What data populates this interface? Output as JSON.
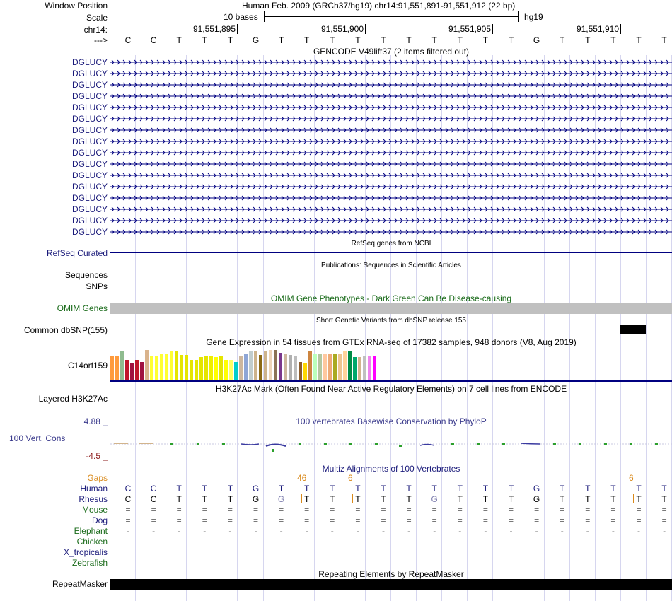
{
  "header": {
    "window_position_label": "Window Position",
    "scale_label": "Scale",
    "chrom_label": "chr14:",
    "strand_label": "--->",
    "assembly_text": "Human Feb. 2009 (GRCh37/hg19)   chr14:91,551,891-91,551,912 (22 bp)",
    "scale_text": "10 bases",
    "db_text": "hg19",
    "ticks": [
      "91,551,895",
      "91,551,900",
      "91,551,905",
      "91,551,910"
    ],
    "bases": [
      "C",
      "C",
      "T",
      "T",
      "T",
      "G",
      "T",
      "T",
      "T",
      "T",
      "T",
      "T",
      "T",
      "T",
      "T",
      "T",
      "G",
      "T",
      "T",
      "T",
      "T",
      "T"
    ]
  },
  "gencode": {
    "title": "GENCODE V49lift37 (2 items filtered out)",
    "gene_labels": [
      "DGLUCY",
      "DGLUCY",
      "DGLUCY",
      "DGLUCY",
      "DGLUCY",
      "DGLUCY",
      "DGLUCY",
      "DGLUCY",
      "DGLUCY",
      "DGLUCY",
      "DGLUCY",
      "DGLUCY",
      "DGLUCY",
      "DGLUCY",
      "DGLUCY",
      "DGLUCY"
    ]
  },
  "refseq": {
    "title": "RefSeq genes from NCBI",
    "label": "RefSeq Curated"
  },
  "publications": {
    "title": "Publications: Sequences in Scientific Articles",
    "label_sequences": "Sequences",
    "label_snps": "SNPs"
  },
  "omim": {
    "title": "OMIM Gene Phenotypes - Dark Green Can Be Disease-causing",
    "label": "OMIM Genes",
    "bar_color": "#c0c0c0"
  },
  "dbsnp": {
    "title": "Short Genetic Variants from dbSNP release 155",
    "label": "Common dbSNP(155)"
  },
  "gtex": {
    "title": "Gene Expression in 54 tissues from GTEx RNA-seq of 17382 samples, 948 donors (V8, Aug 2019)",
    "label": "C14orf159",
    "tissue_levels": [
      0.7,
      0.7,
      0.85,
      0.6,
      0.5,
      0.6,
      0.55,
      0.9,
      0.7,
      0.7,
      0.78,
      0.8,
      0.85,
      0.85,
      0.75,
      0.75,
      0.6,
      0.6,
      0.68,
      0.72,
      0.72,
      0.68,
      0.7,
      0.6,
      0.6,
      0.55,
      0.7,
      0.8,
      0.85,
      0.85,
      0.75,
      0.88,
      0.9,
      0.9,
      0.82,
      0.78,
      0.75,
      0.7,
      0.55,
      0.5,
      0.85,
      0.8,
      0.78,
      0.8,
      0.8,
      0.78,
      0.78,
      0.85,
      0.85,
      0.68,
      0.68,
      0.72,
      0.7,
      0.72
    ],
    "tissue_colors": [
      "#ff9a3c",
      "#ff9a3c",
      "#8fbc8f",
      "#c0172b",
      "#a01240",
      "#c0172b",
      "#a01240",
      "#d9b38c",
      "#ffff33",
      "#ffff33",
      "#ffff33",
      "#ffff33",
      "#ffff33",
      "#e5e500",
      "#e5e500",
      "#e5e500",
      "#e5e500",
      "#e5e500",
      "#e5e500",
      "#e5e500",
      "#eeee00",
      "#ffff00",
      "#e5e500",
      "#ffff00",
      "#ffff66",
      "#00cdcd",
      "#cdb79e",
      "#8ea6d6",
      "#c1cdcd",
      "#cdb38b",
      "#8b6914",
      "#cdb38b",
      "#eed5b7",
      "#8b7355",
      "#7a378b",
      "#cdb79e",
      "#b0b0b0",
      "#bdbdbd",
      "#8b5a2b",
      "#ffd700",
      "#cd853f",
      "#bbffbb",
      "#b4c7a0",
      "#ffc8a0",
      "#eeaa77",
      "#aaaa22",
      "#eec591",
      "#ffd39b",
      "#008b45",
      "#00a86b",
      "#d2b48c",
      "#c0c0c0",
      "#ee82ee",
      "#ff00ff"
    ]
  },
  "h3k27ac": {
    "title": "H3K27Ac Mark (Often Found Near Active Regulatory Elements) on 7 cell lines from ENCODE",
    "label": "Layered H3K27Ac"
  },
  "phylop": {
    "title": "100 vertebrates Basewise Conservation by PhyloP",
    "label": "100 Vert. Cons",
    "ymax_label": "4.88 _",
    "ymin_label": "-4.5 _"
  },
  "multiz": {
    "title": "Multiz Alignments of 100 Vertebrates",
    "gaps_label": "Gaps",
    "gap_values": [
      "46",
      "6",
      "6"
    ],
    "species": [
      {
        "name": "Human",
        "row": [
          "C",
          "C",
          "T",
          "T",
          "T",
          "G",
          "T",
          "T",
          "T",
          "T",
          "T",
          "T",
          "T",
          "T",
          "T",
          "T",
          "G",
          "T",
          "T",
          "T",
          "T",
          "T"
        ]
      },
      {
        "name": "Rhesus",
        "row": [
          "C",
          "C",
          "T",
          "T",
          "T",
          "G",
          "G",
          "T",
          "T",
          "T",
          "T",
          "T",
          "G",
          "T",
          "T",
          "T",
          "G",
          "T",
          "T",
          "T",
          "T",
          "T"
        ]
      },
      {
        "name": "Mouse",
        "row": [
          "=",
          "=",
          "=",
          "=",
          "=",
          "=",
          "=",
          "=",
          "=",
          "=",
          "=",
          "=",
          "=",
          "=",
          "=",
          "=",
          "=",
          "=",
          "=",
          "=",
          "=",
          "="
        ]
      },
      {
        "name": "Dog",
        "row": [
          "=",
          "=",
          "=",
          "=",
          "=",
          "=",
          "=",
          "=",
          "=",
          "=",
          "=",
          "=",
          "=",
          "=",
          "=",
          "=",
          "=",
          "=",
          "=",
          "=",
          "=",
          "="
        ]
      },
      {
        "name": "Elephant",
        "row": [
          "-",
          "-",
          "-",
          "-",
          "-",
          "-",
          "-",
          "-",
          "-",
          "-",
          "-",
          "-",
          "-",
          "-",
          "-",
          "-",
          "-",
          "-",
          "-",
          "-",
          "-",
          "-"
        ]
      },
      {
        "name": "Chicken",
        "row": []
      },
      {
        "name": "X_tropicalis",
        "row": []
      },
      {
        "name": "Zebrafish",
        "row": []
      }
    ]
  },
  "repeatmasker": {
    "title": "Repeating Elements by RepeatMasker",
    "label": "RepeatMasker"
  },
  "colors": {
    "navy": "#1a1a7a",
    "green": "#1a6b1a",
    "orange": "#d9891a",
    "phylop_blue": "#3a3a8c",
    "gene_line": "#000080"
  }
}
